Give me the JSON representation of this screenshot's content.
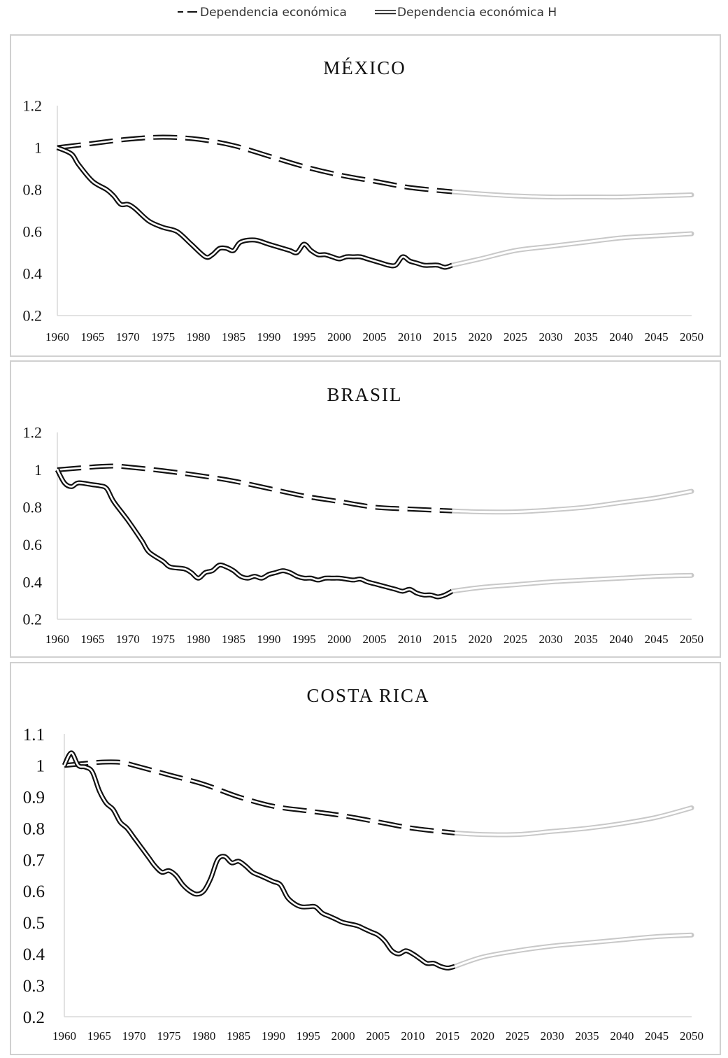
{
  "legend": {
    "series1_label": "Dependencia económica",
    "series2_label": "Dependencia económica H"
  },
  "colors": {
    "line": "#111111",
    "projection": "#c8c8c8",
    "axis": "#d9d9d9",
    "text": "#111111"
  },
  "chart_data": [
    {
      "type": "line",
      "title": "MÉXICO",
      "xlabel": "",
      "ylabel": "",
      "ylim": [
        0.2,
        1.2
      ],
      "yticks": [
        "1.2",
        "1",
        "0.8",
        "0.6",
        "0.4",
        "0.2"
      ],
      "ytick_values": [
        1.2,
        1.0,
        0.8,
        0.6,
        0.4,
        0.2
      ],
      "xlim": [
        1960,
        2050
      ],
      "xticks": [
        "1960",
        "1965",
        "1970",
        "1975",
        "1980",
        "1985",
        "1990",
        "1995",
        "2000",
        "2005",
        "2010",
        "2015",
        "2020",
        "2025",
        "2030",
        "2035",
        "2040",
        "2045",
        "2050"
      ],
      "projection_start": 2016,
      "series": [
        {
          "name": "Dependencia económica",
          "style": "dashed",
          "x": [
            1960,
            1965,
            1970,
            1975,
            1980,
            1985,
            1990,
            1995,
            2000,
            2005,
            2010,
            2016,
            2020,
            2025,
            2030,
            2035,
            2040,
            2045,
            2050
          ],
          "y": [
            1.0,
            1.02,
            1.04,
            1.05,
            1.04,
            1.01,
            0.96,
            0.91,
            0.87,
            0.84,
            0.81,
            0.79,
            0.78,
            0.77,
            0.765,
            0.765,
            0.765,
            0.77,
            0.775
          ]
        },
        {
          "name": "Dependencia económica H",
          "style": "double",
          "x": [
            1960,
            1962,
            1963,
            1965,
            1967,
            1968,
            1969,
            1970,
            1971,
            1973,
            1975,
            1977,
            1979,
            1981,
            1982,
            1983,
            1984,
            1985,
            1986,
            1988,
            1990,
            1992,
            1993,
            1994,
            1995,
            1996,
            1997,
            1998,
            1999,
            2000,
            2001,
            2002,
            2003,
            2004,
            2005,
            2006,
            2007,
            2008,
            2009,
            2010,
            2011,
            2012,
            2013,
            2014,
            2015,
            2016,
            2020,
            2025,
            2030,
            2035,
            2040,
            2045,
            2050
          ],
          "y": [
            1.0,
            0.97,
            0.92,
            0.84,
            0.8,
            0.77,
            0.73,
            0.73,
            0.71,
            0.65,
            0.62,
            0.6,
            0.54,
            0.48,
            0.49,
            0.52,
            0.52,
            0.51,
            0.55,
            0.56,
            0.54,
            0.52,
            0.51,
            0.5,
            0.54,
            0.51,
            0.49,
            0.49,
            0.48,
            0.47,
            0.48,
            0.48,
            0.48,
            0.47,
            0.46,
            0.45,
            0.44,
            0.44,
            0.48,
            0.46,
            0.45,
            0.44,
            0.44,
            0.44,
            0.43,
            0.44,
            0.47,
            0.51,
            0.53,
            0.55,
            0.57,
            0.58,
            0.59
          ]
        }
      ]
    },
    {
      "type": "line",
      "title": "BRASIL",
      "xlabel": "",
      "ylabel": "",
      "ylim": [
        0.2,
        1.2
      ],
      "yticks": [
        "1.2",
        "1",
        "0.8",
        "0.6",
        "0.4",
        "0.2"
      ],
      "ytick_values": [
        1.2,
        1.0,
        0.8,
        0.6,
        0.4,
        0.2
      ],
      "xlim": [
        1960,
        2050
      ],
      "xticks": [
        "1960",
        "1965",
        "1970",
        "1975",
        "1980",
        "1985",
        "1990",
        "1995",
        "2000",
        "2005",
        "2010",
        "2015",
        "2020",
        "2025",
        "2030",
        "2035",
        "2040",
        "2045",
        "2050"
      ],
      "projection_start": 2016,
      "series": [
        {
          "name": "Dependencia económica",
          "style": "dashed",
          "x": [
            1960,
            1965,
            1968,
            1970,
            1975,
            1980,
            1985,
            1990,
            1995,
            2000,
            2005,
            2010,
            2016,
            2020,
            2025,
            2030,
            2035,
            2040,
            2045,
            2050
          ],
          "y": [
            1.0,
            1.015,
            1.02,
            1.015,
            0.995,
            0.97,
            0.94,
            0.9,
            0.86,
            0.83,
            0.8,
            0.79,
            0.78,
            0.775,
            0.775,
            0.785,
            0.8,
            0.825,
            0.85,
            0.885
          ]
        },
        {
          "name": "Dependencia económica H",
          "style": "double",
          "x": [
            1960,
            1961,
            1962,
            1963,
            1965,
            1966,
            1967,
            1968,
            1970,
            1972,
            1973,
            1975,
            1976,
            1978,
            1979,
            1980,
            1981,
            1982,
            1983,
            1984,
            1985,
            1986,
            1987,
            1988,
            1989,
            1990,
            1991,
            1992,
            1993,
            1994,
            1995,
            1996,
            1997,
            1998,
            1999,
            2000,
            2001,
            2002,
            2003,
            2004,
            2005,
            2006,
            2007,
            2008,
            2009,
            2010,
            2011,
            2012,
            2013,
            2014,
            2015,
            2016,
            2020,
            2025,
            2030,
            2035,
            2040,
            2045,
            2050
          ],
          "y": [
            1.0,
            0.93,
            0.91,
            0.93,
            0.92,
            0.915,
            0.9,
            0.83,
            0.73,
            0.62,
            0.56,
            0.51,
            0.48,
            0.47,
            0.45,
            0.42,
            0.45,
            0.46,
            0.49,
            0.48,
            0.46,
            0.43,
            0.42,
            0.43,
            0.42,
            0.44,
            0.45,
            0.46,
            0.45,
            0.43,
            0.42,
            0.42,
            0.41,
            0.42,
            0.42,
            0.42,
            0.415,
            0.41,
            0.415,
            0.4,
            0.39,
            0.38,
            0.37,
            0.36,
            0.35,
            0.36,
            0.34,
            0.33,
            0.33,
            0.32,
            0.33,
            0.35,
            0.37,
            0.385,
            0.4,
            0.41,
            0.42,
            0.43,
            0.435
          ]
        }
      ]
    },
    {
      "type": "line",
      "title": "COSTA RICA",
      "xlabel": "",
      "ylabel": "",
      "ylim": [
        0.2,
        1.1
      ],
      "yticks": [
        "1.1",
        "1",
        "0.9",
        "0.8",
        "0.7",
        "0.6",
        "0.5",
        "0.4",
        "0.3",
        "0.2"
      ],
      "ytick_values": [
        1.1,
        1.0,
        0.9,
        0.8,
        0.7,
        0.6,
        0.5,
        0.4,
        0.3,
        0.2
      ],
      "xlim": [
        1960,
        2050
      ],
      "xticks": [
        "1960",
        "1965",
        "1970",
        "1975",
        "1980",
        "1985",
        "1990",
        "1995",
        "2000",
        "2005",
        "2010",
        "2015",
        "2020",
        "2025",
        "2030",
        "2035",
        "2040",
        "2045",
        "2050"
      ],
      "projection_start": 2016,
      "series": [
        {
          "name": "Dependencia económica",
          "style": "dashed",
          "x": [
            1960,
            1965,
            1968,
            1970,
            1975,
            1980,
            1985,
            1990,
            1995,
            2000,
            2005,
            2010,
            2016,
            2020,
            2025,
            2030,
            2035,
            2040,
            2045,
            2050
          ],
          "y": [
            1.0,
            1.01,
            1.01,
            1.0,
            0.97,
            0.94,
            0.9,
            0.87,
            0.855,
            0.84,
            0.82,
            0.8,
            0.785,
            0.78,
            0.78,
            0.79,
            0.8,
            0.815,
            0.835,
            0.865
          ]
        },
        {
          "name": "Dependencia económica H",
          "style": "double",
          "x": [
            1960,
            1961,
            1962,
            1963,
            1964,
            1965,
            1966,
            1967,
            1968,
            1969,
            1970,
            1972,
            1973,
            1974,
            1975,
            1976,
            1977,
            1978,
            1979,
            1980,
            1981,
            1982,
            1983,
            1984,
            1985,
            1986,
            1987,
            1988,
            1989,
            1990,
            1991,
            1992,
            1993,
            1994,
            1995,
            1996,
            1997,
            1998,
            1999,
            2000,
            2002,
            2003,
            2004,
            2005,
            2006,
            2007,
            2008,
            2009,
            2010,
            2011,
            2012,
            2013,
            2014,
            2015,
            2016,
            2020,
            2025,
            2030,
            2035,
            2040,
            2045,
            2050
          ],
          "y": [
            1.0,
            1.04,
            1.0,
            0.995,
            0.98,
            0.92,
            0.88,
            0.86,
            0.82,
            0.8,
            0.77,
            0.71,
            0.68,
            0.66,
            0.665,
            0.65,
            0.62,
            0.6,
            0.59,
            0.6,
            0.64,
            0.7,
            0.71,
            0.69,
            0.695,
            0.68,
            0.66,
            0.65,
            0.64,
            0.63,
            0.62,
            0.58,
            0.56,
            0.55,
            0.55,
            0.55,
            0.53,
            0.52,
            0.51,
            0.5,
            0.49,
            0.48,
            0.47,
            0.46,
            0.44,
            0.41,
            0.4,
            0.41,
            0.4,
            0.385,
            0.37,
            0.37,
            0.36,
            0.355,
            0.36,
            0.39,
            0.41,
            0.425,
            0.435,
            0.445,
            0.455,
            0.46
          ]
        }
      ]
    }
  ]
}
